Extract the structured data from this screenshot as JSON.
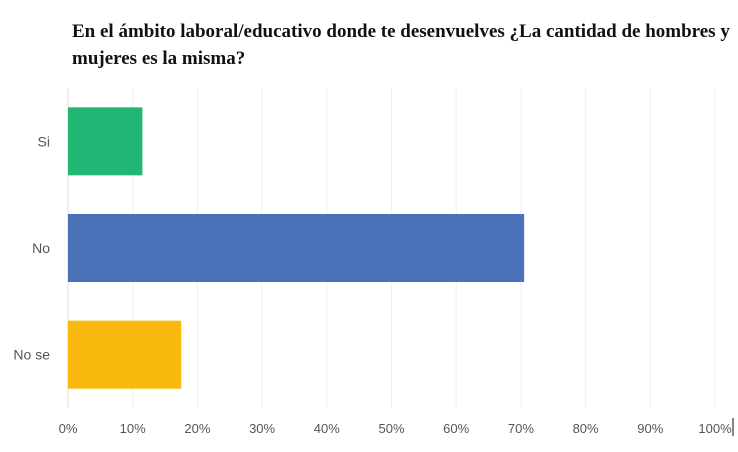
{
  "title": "En el ámbito laboral/educativo donde te desenvuelves ¿La cantidad de hombres y mujeres es la misma?",
  "chart_data": {
    "type": "bar",
    "orientation": "horizontal",
    "title": "En el ámbito laboral/educativo donde te desenvuelves ¿La cantidad de hombres y mujeres es la misma?",
    "categories": [
      "Si",
      "No",
      "No se"
    ],
    "values": [
      11.5,
      70.5,
      17.5
    ],
    "colors": [
      "#22b573",
      "#4a72b8",
      "#f9b90f"
    ],
    "xlim": [
      0,
      100
    ],
    "xticks": [
      "0%",
      "10%",
      "20%",
      "30%",
      "40%",
      "50%",
      "60%",
      "70%",
      "80%",
      "90%",
      "100%"
    ],
    "grid": true,
    "legend": "none",
    "xlabel": "",
    "ylabel": ""
  }
}
